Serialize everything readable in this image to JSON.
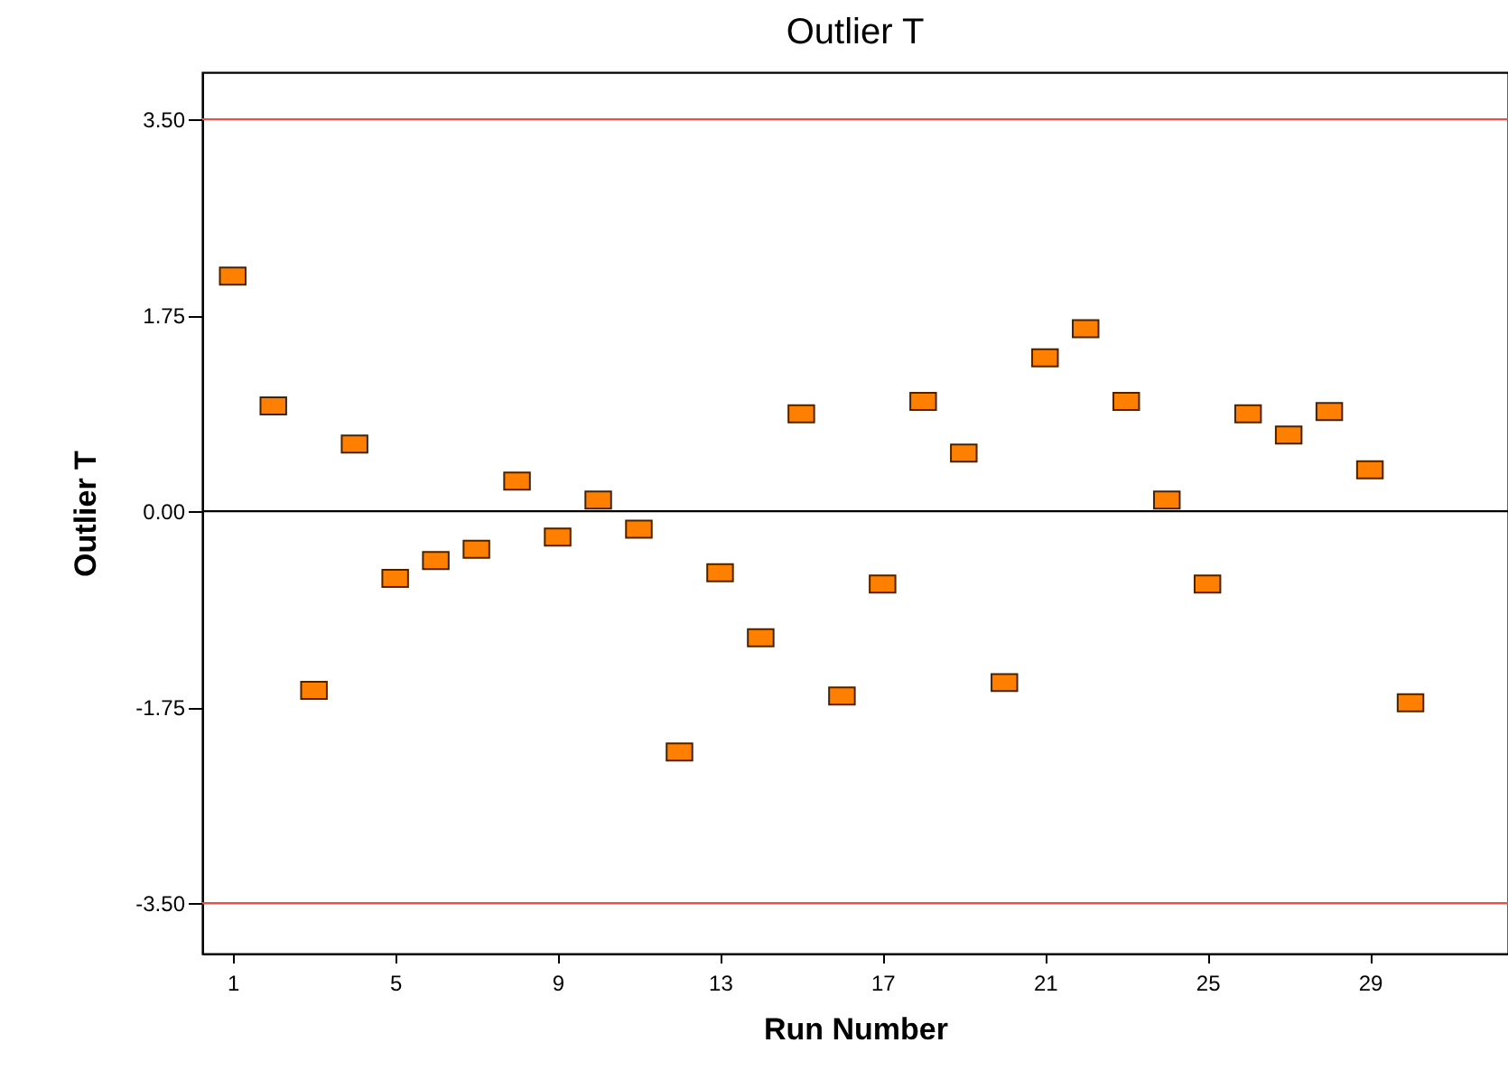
{
  "chart_data": {
    "type": "scatter",
    "title": "Outlier T",
    "xlabel": "Run Number",
    "ylabel": "Outlier T",
    "x": [
      1,
      2,
      3,
      4,
      5,
      6,
      7,
      8,
      9,
      10,
      11,
      12,
      13,
      14,
      15,
      16,
      17,
      18,
      19,
      20,
      21,
      22,
      23,
      24,
      25,
      26,
      27,
      28,
      29,
      30
    ],
    "series": [
      {
        "color": "#ff8000",
        "values": [
          2.1,
          0.94,
          -1.6,
          0.6,
          -0.6,
          -0.44,
          -0.34,
          0.27,
          -0.23,
          0.1,
          -0.16,
          -2.15,
          -0.55,
          -1.13,
          0.87,
          -1.65,
          -0.65,
          0.98,
          0.52,
          -1.53,
          1.37,
          1.63,
          0.98,
          0.1,
          -0.65,
          0.87,
          0.68,
          0.89,
          0.37,
          -1.71
        ]
      }
    ],
    "xlim": [
      0.25,
      32.4
    ],
    "xticks": [
      1,
      5,
      9,
      13,
      17,
      21,
      25,
      29
    ],
    "ylim": [
      -3.95,
      3.92
    ],
    "yticks": [
      {
        "value": -3.5,
        "label": "-3.50"
      },
      {
        "value": -1.75,
        "label": "-1.75"
      },
      {
        "value": 0,
        "label": "0.00"
      },
      {
        "value": 1.75,
        "label": "1.75"
      },
      {
        "value": 3.5,
        "label": "3.50"
      }
    ],
    "ref_lines": [
      {
        "axis": "y",
        "value": 3.5,
        "color": "#e8504a"
      },
      {
        "axis": "y",
        "value": 0,
        "color": "#000000"
      },
      {
        "axis": "y",
        "value": -3.5,
        "color": "#e8504a"
      }
    ],
    "marker": "square",
    "grid": false
  }
}
